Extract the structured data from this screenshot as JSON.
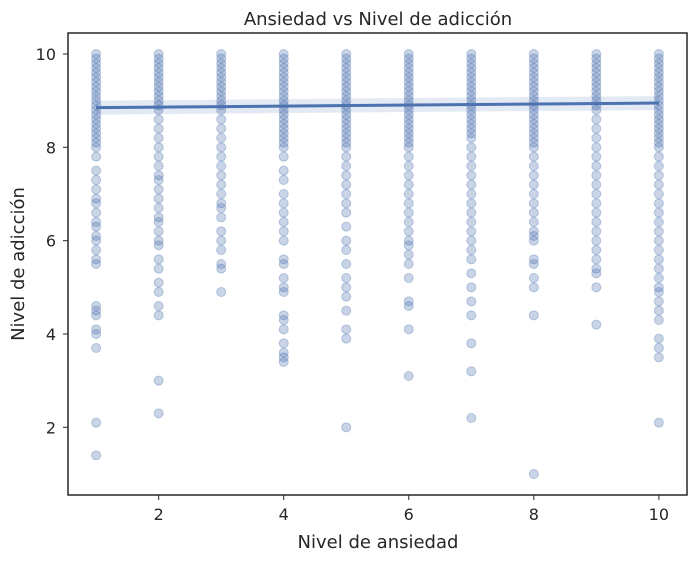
{
  "chart_data": {
    "type": "scatter",
    "title": "Ansiedad vs Nivel de adicción",
    "xlabel": "Nivel de ansiedad",
    "ylabel": "Nivel de adicción",
    "xlim": [
      0.55,
      10.45
    ],
    "ylim": [
      0.55,
      10.45
    ],
    "xticks": [
      2,
      4,
      6,
      8,
      10
    ],
    "yticks": [
      2,
      4,
      6,
      8,
      10
    ],
    "grid": false,
    "colors": {
      "point": "#4c72b0",
      "line": "#4c72b0",
      "band": "#4c72b0"
    },
    "regression": {
      "x": [
        1,
        10
      ],
      "y": [
        8.85,
        8.95
      ]
    },
    "series": [
      {
        "x": 1,
        "y": [
          10,
          9.9,
          9.8,
          9.7,
          9.6,
          9.5,
          9.4,
          9.3,
          9.2,
          9.1,
          9.0,
          8.9,
          8.8,
          8.7,
          8.6,
          8.5,
          8.4,
          8.3,
          8.2,
          8.1,
          8.0,
          7.8,
          7.5,
          7.3,
          7.1,
          6.9,
          6.8,
          6.6,
          6.4,
          6.3,
          6.1,
          6.0,
          5.8,
          5.6,
          5.5,
          4.6,
          4.5,
          4.4,
          4.1,
          4.0,
          3.7,
          2.1,
          1.4
        ]
      },
      {
        "x": 2,
        "y": [
          10,
          9.9,
          9.8,
          9.7,
          9.6,
          9.5,
          9.4,
          9.3,
          9.2,
          9.1,
          9.0,
          8.9,
          8.8,
          8.6,
          8.4,
          8.2,
          8.0,
          7.8,
          7.6,
          7.4,
          7.3,
          7.1,
          6.9,
          6.7,
          6.5,
          6.4,
          6.2,
          6.0,
          5.9,
          5.6,
          5.4,
          5.1,
          4.9,
          4.6,
          4.4,
          3.0,
          2.3
        ]
      },
      {
        "x": 3,
        "y": [
          10,
          9.9,
          9.8,
          9.7,
          9.6,
          9.5,
          9.4,
          9.3,
          9.2,
          9.1,
          9.0,
          8.9,
          8.8,
          8.6,
          8.4,
          8.2,
          8.0,
          7.8,
          7.6,
          7.4,
          7.2,
          7.0,
          6.8,
          6.7,
          6.5,
          6.2,
          6.0,
          5.8,
          5.5,
          5.4,
          4.9
        ]
      },
      {
        "x": 4,
        "y": [
          10,
          9.9,
          9.8,
          9.7,
          9.6,
          9.5,
          9.4,
          9.3,
          9.2,
          9.1,
          9.0,
          8.9,
          8.8,
          8.7,
          8.6,
          8.5,
          8.4,
          8.3,
          8.2,
          8.1,
          8.0,
          7.8,
          7.5,
          7.3,
          7.0,
          6.8,
          6.6,
          6.4,
          6.2,
          6.0,
          5.6,
          5.5,
          5.2,
          5.0,
          4.9,
          4.4,
          4.3,
          4.1,
          3.8,
          3.6,
          3.5,
          3.4
        ]
      },
      {
        "x": 5,
        "y": [
          10,
          9.9,
          9.8,
          9.7,
          9.6,
          9.5,
          9.4,
          9.3,
          9.2,
          9.1,
          9.0,
          8.9,
          8.8,
          8.7,
          8.6,
          8.5,
          8.4,
          8.3,
          8.2,
          8.1,
          8.0,
          7.8,
          7.6,
          7.4,
          7.2,
          7.0,
          6.8,
          6.6,
          6.3,
          6.0,
          5.8,
          5.5,
          5.2,
          5.0,
          4.8,
          4.5,
          4.1,
          3.9,
          2.0
        ]
      },
      {
        "x": 6,
        "y": [
          10,
          9.9,
          9.8,
          9.7,
          9.6,
          9.5,
          9.4,
          9.3,
          9.2,
          9.1,
          9.0,
          8.9,
          8.8,
          8.7,
          8.6,
          8.5,
          8.4,
          8.3,
          8.2,
          8.1,
          8.0,
          7.8,
          7.6,
          7.4,
          7.2,
          7.0,
          6.8,
          6.6,
          6.4,
          6.2,
          6.0,
          5.9,
          5.7,
          5.5,
          5.2,
          4.7,
          4.6,
          4.1,
          3.1
        ]
      },
      {
        "x": 7,
        "y": [
          10,
          9.9,
          9.8,
          9.7,
          9.6,
          9.5,
          9.4,
          9.3,
          9.2,
          9.1,
          9.0,
          8.9,
          8.8,
          8.7,
          8.6,
          8.5,
          8.4,
          8.3,
          8.2,
          8.0,
          7.8,
          7.6,
          7.4,
          7.2,
          7.0,
          6.8,
          6.6,
          6.4,
          6.2,
          6.0,
          5.8,
          5.6,
          5.3,
          5.0,
          4.7,
          4.4,
          3.8,
          3.2,
          2.2
        ]
      },
      {
        "x": 8,
        "y": [
          10,
          9.9,
          9.8,
          9.7,
          9.6,
          9.5,
          9.4,
          9.3,
          9.2,
          9.1,
          9.0,
          8.9,
          8.8,
          8.7,
          8.6,
          8.5,
          8.4,
          8.3,
          8.2,
          8.1,
          8.0,
          7.8,
          7.6,
          7.4,
          7.2,
          7.0,
          6.8,
          6.6,
          6.4,
          6.2,
          6.1,
          6.0,
          5.6,
          5.5,
          5.2,
          5.0,
          4.4,
          1.0
        ]
      },
      {
        "x": 9,
        "y": [
          10,
          9.9,
          9.8,
          9.7,
          9.6,
          9.5,
          9.4,
          9.3,
          9.2,
          9.1,
          9.0,
          8.9,
          8.8,
          8.6,
          8.4,
          8.2,
          8.0,
          7.8,
          7.6,
          7.4,
          7.2,
          7.0,
          6.8,
          6.6,
          6.4,
          6.2,
          6.0,
          5.8,
          5.6,
          5.4,
          5.3,
          5.0,
          4.2
        ]
      },
      {
        "x": 10,
        "y": [
          10,
          9.9,
          9.8,
          9.7,
          9.6,
          9.5,
          9.4,
          9.3,
          9.2,
          9.1,
          9.0,
          8.9,
          8.8,
          8.7,
          8.6,
          8.5,
          8.4,
          8.3,
          8.2,
          8.1,
          8.0,
          7.8,
          7.6,
          7.4,
          7.2,
          7.0,
          6.8,
          6.6,
          6.4,
          6.2,
          6.0,
          5.8,
          5.6,
          5.4,
          5.2,
          5.0,
          4.9,
          4.7,
          4.5,
          4.3,
          3.9,
          3.7,
          3.5,
          2.1
        ]
      }
    ]
  }
}
